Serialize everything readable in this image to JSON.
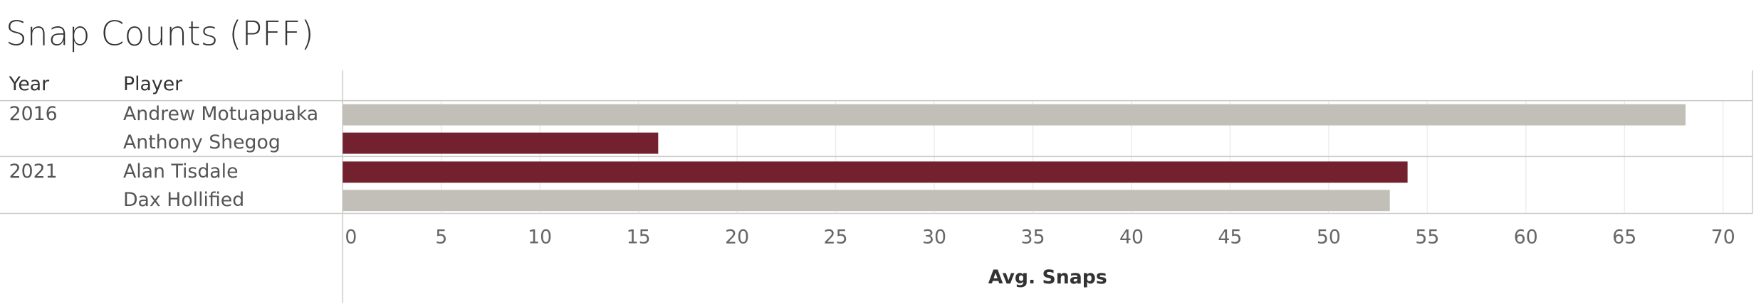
{
  "chart_data": {
    "type": "bar",
    "title": "Snap Counts (PFF)",
    "row_headers": [
      "Year",
      "Player"
    ],
    "years": [
      "2016",
      null,
      "2021",
      null
    ],
    "categories": [
      "Andrew Motuapuaka",
      "Anthony Shegog",
      "Alan Tisdale",
      "Dax Hollified"
    ],
    "series": [
      {
        "values": [
          68.1,
          16,
          54,
          53.1
        ],
        "colors": [
          "#c2bfb8",
          "#73212f",
          "#73212f",
          "#c2bfb8"
        ]
      }
    ],
    "xlabel": "Avg. Snaps",
    "xlim": [
      0,
      71.5
    ],
    "xticks": [
      0,
      5,
      10,
      15,
      20,
      25,
      30,
      35,
      40,
      45,
      50,
      55,
      60,
      65,
      70
    ],
    "grid": true
  }
}
